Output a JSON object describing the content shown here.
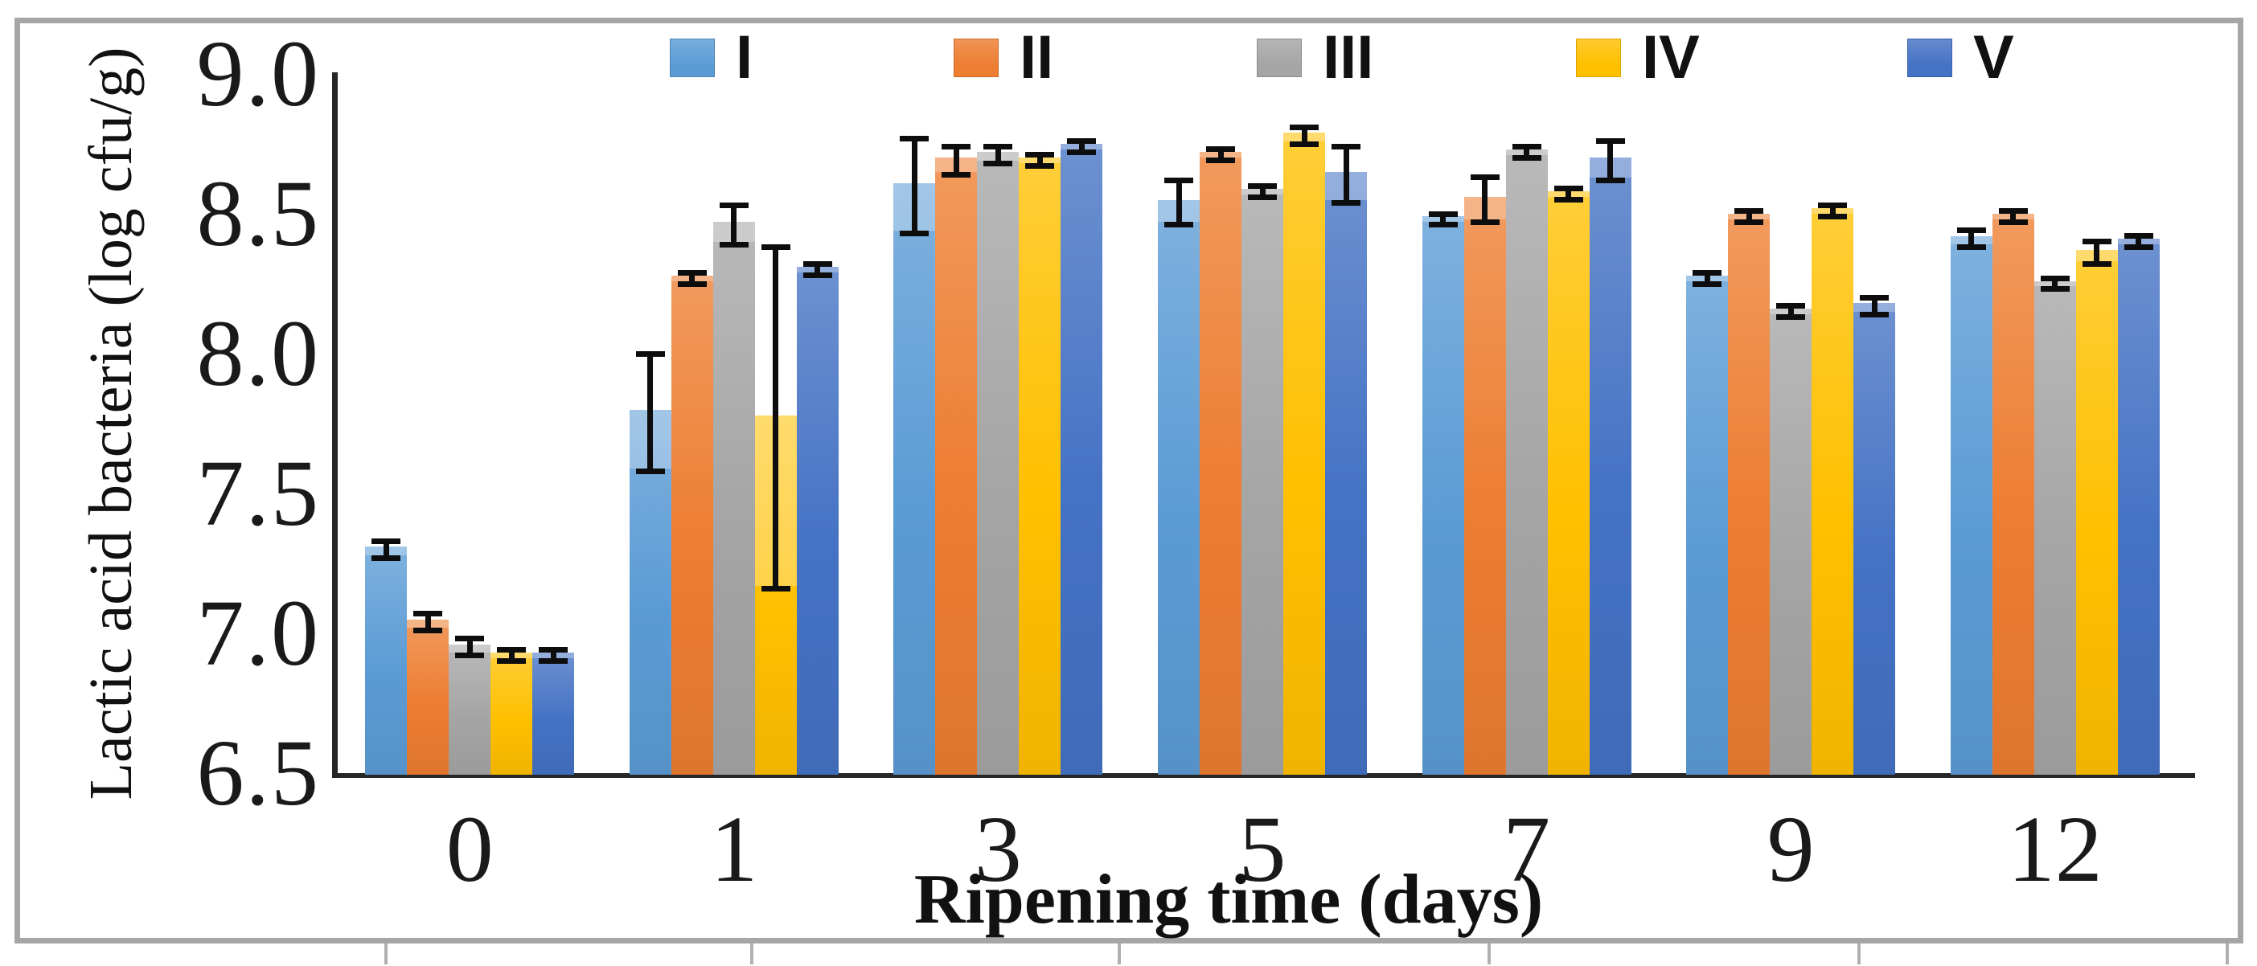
{
  "figure": {
    "background": "#ffffff",
    "frame_color": "#a6a6a6",
    "ruler_tick_color": "#b0b0b0"
  },
  "chart_data": {
    "type": "bar",
    "title": "",
    "xlabel": "Ripening time (days)",
    "ylabel": "Lactic acid bacteria (log cfu/g)",
    "categories": [
      "0",
      "1",
      "3",
      "5",
      "7",
      "9",
      "12"
    ],
    "y_ticks": [
      6.5,
      7.0,
      7.5,
      8.0,
      8.5,
      9.0
    ],
    "y_tick_labels": [
      "6.5",
      "7.0",
      "7.5",
      "8.0",
      "8.5",
      "9.0"
    ],
    "ylim": [
      6.5,
      9.0
    ],
    "grid": false,
    "legend_position": "top",
    "axis_color": "#262626",
    "text_color": "#1a1a1a",
    "error_bar_color": "#0d0d0d",
    "series": [
      {
        "name": "I",
        "color": "#5B9BD5",
        "values": [
          7.31,
          7.8,
          8.61,
          8.55,
          8.49,
          8.28,
          8.42
        ],
        "errors": [
          0.03,
          0.21,
          0.17,
          0.08,
          0.02,
          0.02,
          0.03
        ]
      },
      {
        "name": "II",
        "color": "#ED7D31",
        "values": [
          7.05,
          8.28,
          8.7,
          8.72,
          8.56,
          8.5,
          8.5
        ],
        "errors": [
          0.03,
          0.02,
          0.05,
          0.02,
          0.08,
          0.02,
          0.02
        ]
      },
      {
        "name": "III",
        "color": "#A5A5A5",
        "values": [
          6.96,
          8.47,
          8.72,
          8.59,
          8.73,
          8.16,
          8.26
        ],
        "errors": [
          0.03,
          0.07,
          0.03,
          0.02,
          0.02,
          0.02,
          0.02
        ]
      },
      {
        "name": "IV",
        "color": "#FFC000",
        "values": [
          6.93,
          7.78,
          8.7,
          8.79,
          8.58,
          8.52,
          8.37
        ],
        "errors": [
          0.02,
          0.61,
          0.02,
          0.03,
          0.02,
          0.02,
          0.04
        ]
      },
      {
        "name": "V",
        "color": "#4472C4",
        "values": [
          6.93,
          8.31,
          8.75,
          8.65,
          8.7,
          8.18,
          8.41
        ],
        "errors": [
          0.02,
          0.02,
          0.02,
          0.1,
          0.07,
          0.03,
          0.02
        ]
      }
    ]
  }
}
